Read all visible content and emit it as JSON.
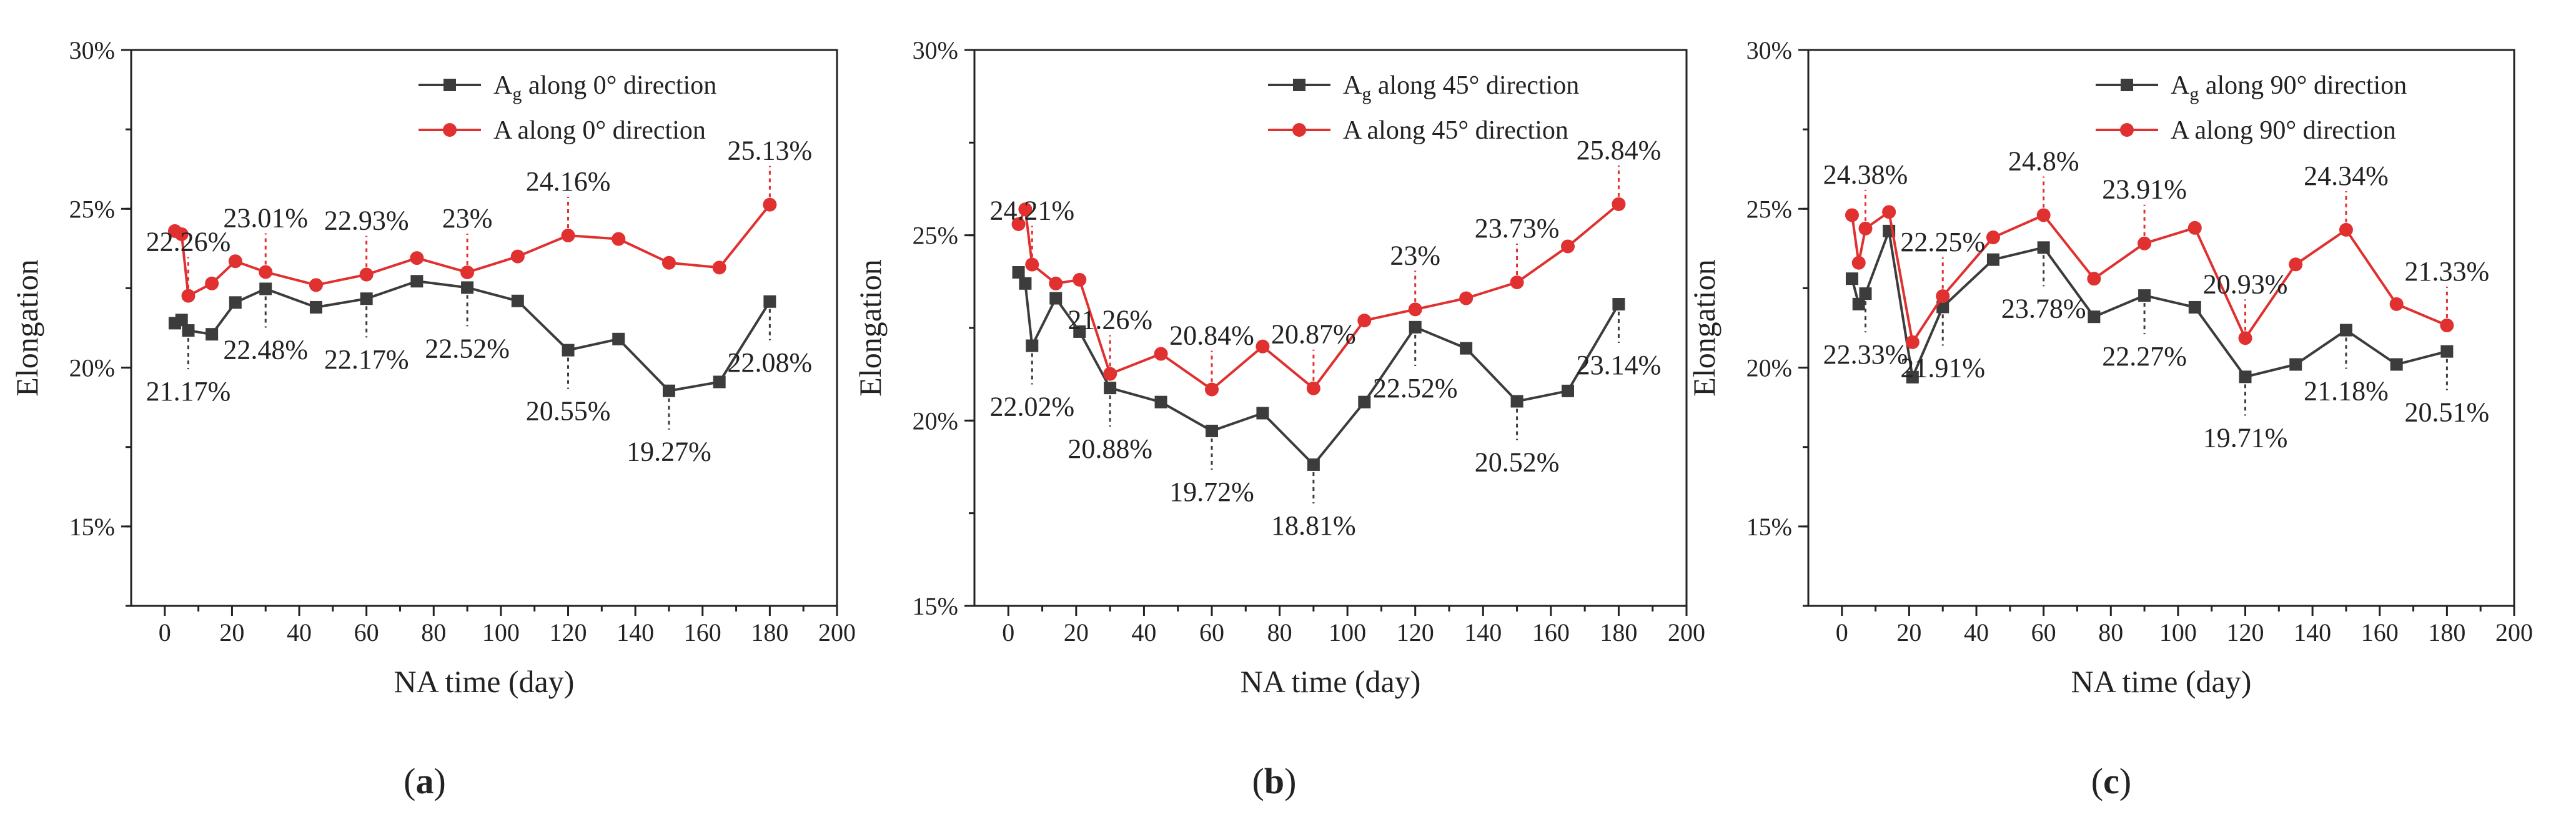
{
  "chart_data": [
    {
      "type": "line",
      "panel_label": "a",
      "xlabel": "NA time (day)",
      "ylabel": "Elongation",
      "xlim": [
        -10,
        200
      ],
      "ylim": [
        0.125,
        0.3
      ],
      "xticks": [
        0,
        20,
        40,
        60,
        80,
        100,
        120,
        140,
        160,
        180,
        200
      ],
      "xtick_labels": [
        "0",
        "20",
        "40",
        "60",
        "80",
        "100",
        "120",
        "140",
        "160",
        "180",
        "200"
      ],
      "yticks": [
        0.15,
        0.2,
        0.25,
        0.3
      ],
      "ytick_labels": [
        "15%",
        "20%",
        "25%",
        "30%"
      ],
      "legend_position": "top-right",
      "series": [
        {
          "name": "Ag along 0° direction",
          "legend_main": "A",
          "legend_sub": "g",
          "legend_rest": " along 0° direction",
          "color": "#3c3c3c",
          "marker": "square",
          "x": [
            3,
            5,
            7,
            14,
            21,
            30,
            45,
            60,
            75,
            90,
            105,
            120,
            135,
            150,
            165,
            180
          ],
          "y": [
            21.4,
            21.5,
            21.17,
            21.05,
            22.05,
            22.48,
            21.9,
            22.17,
            22.72,
            22.52,
            22.1,
            20.55,
            20.9,
            19.27,
            19.55,
            22.08
          ]
        },
        {
          "name": "A along 0° direction",
          "legend_main": "A",
          "legend_sub": "",
          "legend_rest": "  along 0° direction",
          "color": "#e03030",
          "marker": "circle",
          "x": [
            3,
            5,
            7,
            14,
            21,
            30,
            45,
            60,
            75,
            90,
            105,
            120,
            135,
            150,
            165,
            180
          ],
          "y": [
            24.3,
            24.2,
            22.26,
            22.65,
            23.35,
            23.01,
            22.6,
            22.93,
            23.45,
            23.0,
            23.5,
            24.16,
            24.05,
            23.3,
            23.15,
            25.13
          ]
        }
      ],
      "annotations": [
        {
          "text": "22.26%",
          "x": 7,
          "y": 22.26,
          "series": 1,
          "dir": "up"
        },
        {
          "text": "23.01%",
          "x": 30,
          "y": 23.01,
          "series": 1,
          "dir": "up"
        },
        {
          "text": "22.93%",
          "x": 60,
          "y": 22.93,
          "series": 1,
          "dir": "up"
        },
        {
          "text": "23%",
          "x": 90,
          "y": 23.0,
          "series": 1,
          "dir": "up"
        },
        {
          "text": "24.16%",
          "x": 120,
          "y": 24.16,
          "series": 1,
          "dir": "up"
        },
        {
          "text": "25.13%",
          "x": 180,
          "y": 25.13,
          "series": 1,
          "dir": "up"
        },
        {
          "text": "21.17%",
          "x": 7,
          "y": 21.17,
          "series": 0,
          "dir": "down"
        },
        {
          "text": "22.48%",
          "x": 30,
          "y": 22.48,
          "series": 0,
          "dir": "down"
        },
        {
          "text": "22.17%",
          "x": 60,
          "y": 22.17,
          "series": 0,
          "dir": "down"
        },
        {
          "text": "22.52%",
          "x": 90,
          "y": 22.52,
          "series": 0,
          "dir": "down"
        },
        {
          "text": "20.55%",
          "x": 120,
          "y": 20.55,
          "series": 0,
          "dir": "down"
        },
        {
          "text": "19.27%",
          "x": 150,
          "y": 19.27,
          "series": 0,
          "dir": "down"
        },
        {
          "text": "22.08%",
          "x": 180,
          "y": 22.08,
          "series": 0,
          "dir": "down"
        }
      ]
    },
    {
      "type": "line",
      "panel_label": "b",
      "xlabel": "NA time (day)",
      "ylabel": "Elongation",
      "xlim": [
        -10,
        200
      ],
      "ylim": [
        0.15,
        0.3
      ],
      "xticks": [
        0,
        20,
        40,
        60,
        80,
        100,
        120,
        140,
        160,
        180,
        200
      ],
      "xtick_labels": [
        "0",
        "20",
        "40",
        "60",
        "80",
        "100",
        "120",
        "140",
        "160",
        "180",
        "200"
      ],
      "yticks": [
        0.15,
        0.2,
        0.25,
        0.3
      ],
      "ytick_labels": [
        "15%",
        "20%",
        "25%",
        "30%"
      ],
      "legend_position": "top-right",
      "series": [
        {
          "name": "Ag along 45° direction",
          "legend_main": "A",
          "legend_sub": "g",
          "legend_rest": " along 45° direction",
          "color": "#3c3c3c",
          "marker": "square",
          "x": [
            3,
            5,
            7,
            14,
            21,
            30,
            45,
            60,
            75,
            90,
            105,
            120,
            135,
            150,
            165,
            180
          ],
          "y": [
            24.0,
            23.7,
            22.02,
            23.3,
            22.4,
            20.88,
            20.5,
            19.72,
            20.2,
            18.81,
            20.5,
            22.52,
            21.95,
            20.52,
            20.8,
            23.14
          ]
        },
        {
          "name": "A along 45° direction",
          "legend_main": "A",
          "legend_sub": "",
          "legend_rest": "  along 45° direction",
          "color": "#e03030",
          "marker": "circle",
          "x": [
            3,
            5,
            7,
            14,
            21,
            30,
            45,
            60,
            75,
            90,
            105,
            120,
            135,
            150,
            165,
            180
          ],
          "y": [
            25.3,
            25.7,
            24.21,
            23.7,
            23.8,
            21.26,
            21.8,
            20.84,
            22.0,
            20.87,
            22.7,
            23.0,
            23.3,
            23.73,
            24.7,
            25.84
          ]
        }
      ],
      "annotations": [
        {
          "text": "24.21%",
          "x": 7,
          "y": 24.21,
          "series": 1,
          "dir": "up"
        },
        {
          "text": "21.26%",
          "x": 30,
          "y": 21.26,
          "series": 1,
          "dir": "up"
        },
        {
          "text": "20.84%",
          "x": 60,
          "y": 20.84,
          "series": 1,
          "dir": "up"
        },
        {
          "text": "20.87%",
          "x": 90,
          "y": 20.87,
          "series": 1,
          "dir": "up"
        },
        {
          "text": "23%",
          "x": 120,
          "y": 23.0,
          "series": 1,
          "dir": "up"
        },
        {
          "text": "23.73%",
          "x": 150,
          "y": 23.73,
          "series": 1,
          "dir": "up"
        },
        {
          "text": "25.84%",
          "x": 180,
          "y": 25.84,
          "series": 1,
          "dir": "up"
        },
        {
          "text": "22.02%",
          "x": 7,
          "y": 22.02,
          "series": 0,
          "dir": "down"
        },
        {
          "text": "20.88%",
          "x": 30,
          "y": 20.88,
          "series": 0,
          "dir": "down"
        },
        {
          "text": "19.72%",
          "x": 60,
          "y": 19.72,
          "series": 0,
          "dir": "down"
        },
        {
          "text": "18.81%",
          "x": 90,
          "y": 18.81,
          "series": 0,
          "dir": "down"
        },
        {
          "text": "22.52%",
          "x": 120,
          "y": 22.52,
          "series": 0,
          "dir": "down"
        },
        {
          "text": "20.52%",
          "x": 150,
          "y": 20.52,
          "series": 0,
          "dir": "down"
        },
        {
          "text": "23.14%",
          "x": 180,
          "y": 23.14,
          "series": 0,
          "dir": "down"
        }
      ]
    },
    {
      "type": "line",
      "panel_label": "c",
      "xlabel": "NA time (day)",
      "ylabel": "Elongation",
      "xlim": [
        -10,
        200
      ],
      "ylim": [
        0.125,
        0.3
      ],
      "xticks": [
        0,
        20,
        40,
        60,
        80,
        100,
        120,
        140,
        160,
        180,
        200
      ],
      "xtick_labels": [
        "0",
        "20",
        "40",
        "60",
        "80",
        "100",
        "120",
        "140",
        "160",
        "180",
        "200"
      ],
      "yticks": [
        0.15,
        0.2,
        0.25,
        0.3
      ],
      "ytick_labels": [
        "15%",
        "20%",
        "25%",
        "30%"
      ],
      "legend_position": "top-right",
      "series": [
        {
          "name": "Ag along 90° direction",
          "legend_main": "A",
          "legend_sub": "g",
          "legend_rest": " along 90° direction",
          "color": "#3c3c3c",
          "marker": "square",
          "x": [
            3,
            5,
            7,
            14,
            21,
            30,
            45,
            60,
            75,
            90,
            105,
            120,
            135,
            150,
            165,
            180
          ],
          "y": [
            22.8,
            22.0,
            22.33,
            24.3,
            19.7,
            21.91,
            23.4,
            23.78,
            21.6,
            22.27,
            21.9,
            19.71,
            20.1,
            21.18,
            20.1,
            20.51
          ]
        },
        {
          "name": "A along 90° direction",
          "legend_main": "A",
          "legend_sub": "",
          "legend_rest": "  along 90° direction",
          "color": "#e03030",
          "marker": "circle",
          "x": [
            3,
            5,
            7,
            14,
            21,
            30,
            45,
            60,
            75,
            90,
            105,
            120,
            135,
            150,
            165,
            180
          ],
          "y": [
            24.8,
            23.3,
            24.38,
            24.9,
            20.8,
            22.25,
            24.1,
            24.8,
            22.8,
            23.91,
            24.4,
            20.93,
            23.25,
            24.34,
            22.0,
            21.33
          ]
        }
      ],
      "annotations": [
        {
          "text": "24.38%",
          "x": 7,
          "y": 24.38,
          "series": 1,
          "dir": "up"
        },
        {
          "text": "22.25%",
          "x": 30,
          "y": 22.25,
          "series": 1,
          "dir": "up"
        },
        {
          "text": "24.8%",
          "x": 60,
          "y": 24.8,
          "series": 1,
          "dir": "up"
        },
        {
          "text": "23.91%",
          "x": 90,
          "y": 23.91,
          "series": 1,
          "dir": "up"
        },
        {
          "text": "20.93%",
          "x": 120,
          "y": 20.93,
          "series": 1,
          "dir": "up"
        },
        {
          "text": "24.34%",
          "x": 150,
          "y": 24.34,
          "series": 1,
          "dir": "up"
        },
        {
          "text": "21.33%",
          "x": 180,
          "y": 21.33,
          "series": 1,
          "dir": "up"
        },
        {
          "text": "22.33%",
          "x": 7,
          "y": 22.33,
          "series": 0,
          "dir": "down"
        },
        {
          "text": "21.91%",
          "x": 30,
          "y": 21.91,
          "series": 0,
          "dir": "down"
        },
        {
          "text": "23.78%",
          "x": 60,
          "y": 23.78,
          "series": 0,
          "dir": "down"
        },
        {
          "text": "22.27%",
          "x": 90,
          "y": 22.27,
          "series": 0,
          "dir": "down"
        },
        {
          "text": "19.71%",
          "x": 120,
          "y": 19.71,
          "series": 0,
          "dir": "down"
        },
        {
          "text": "21.18%",
          "x": 150,
          "y": 21.18,
          "series": 0,
          "dir": "down"
        },
        {
          "text": "20.51%",
          "x": 180,
          "y": 20.51,
          "series": 0,
          "dir": "down"
        }
      ]
    }
  ]
}
